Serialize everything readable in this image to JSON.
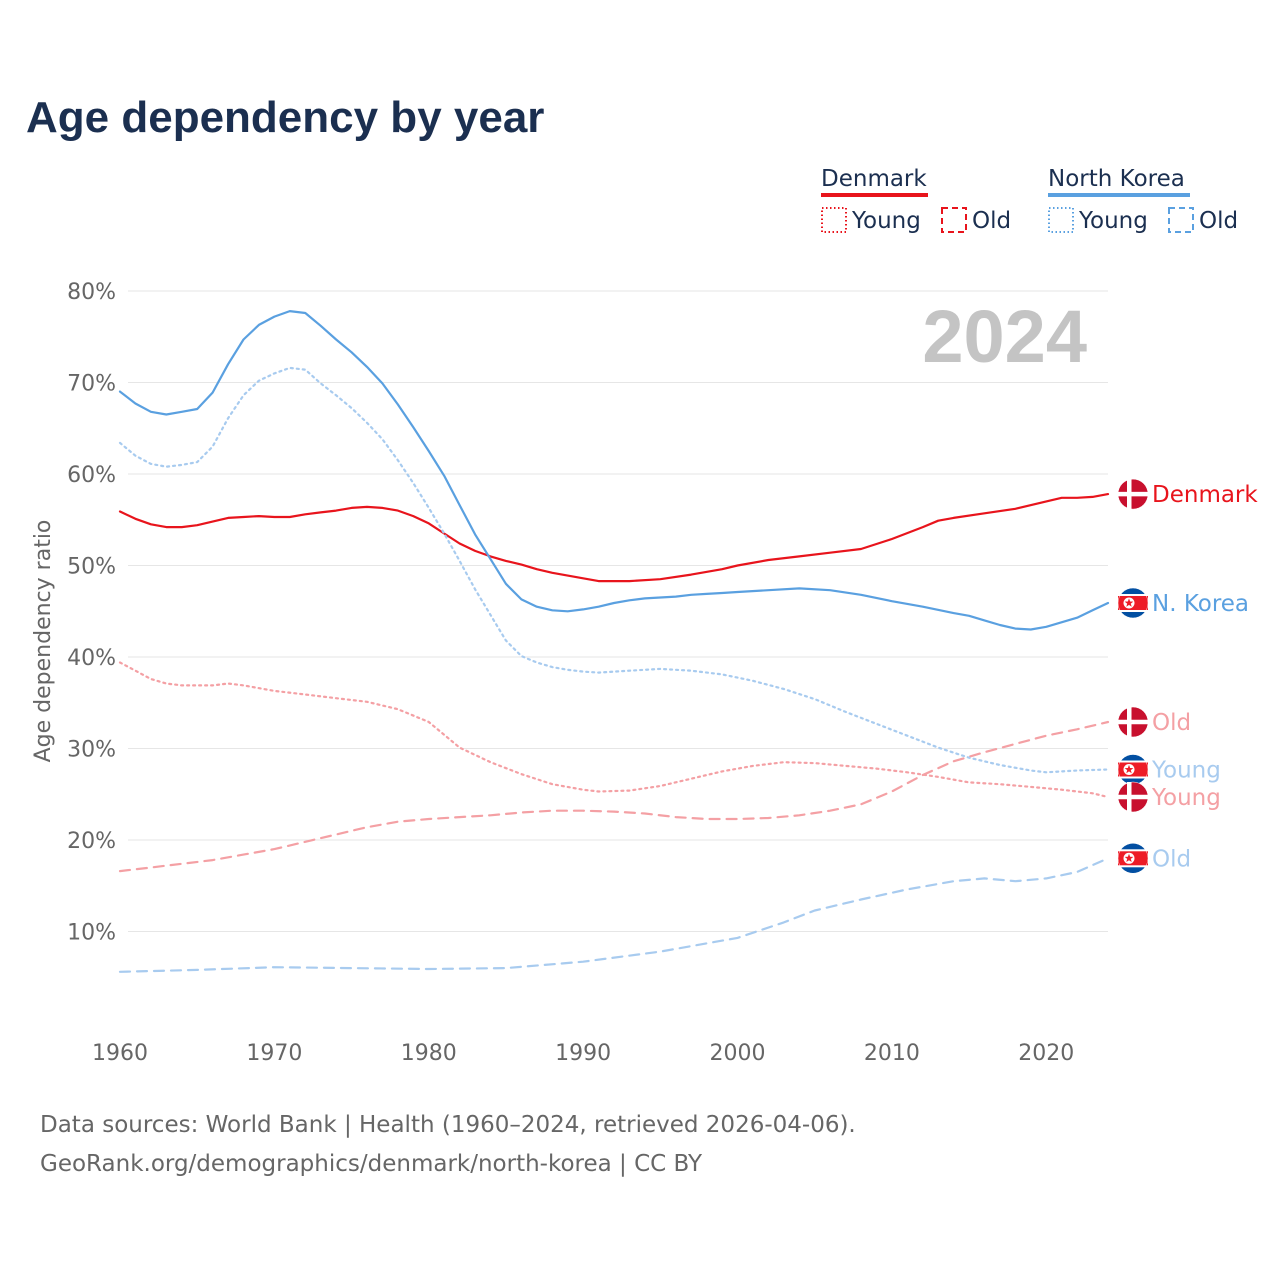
{
  "title": "Age dependency by year",
  "year_watermark": "2024",
  "colors": {
    "denmark": "#e8141c",
    "denmark_light": "#f4a0a4",
    "north_korea": "#5aa0e0",
    "north_korea_light": "#a8cbef",
    "grid": "#e6e6e6",
    "title": "#1b2f50"
  },
  "legend": {
    "groups": [
      {
        "name": "Denmark",
        "color_key": "denmark",
        "items": [
          "Young",
          "Old"
        ]
      },
      {
        "name": "North Korea",
        "color_key": "north_korea",
        "items": [
          "Young",
          "Old"
        ]
      }
    ]
  },
  "end_labels": [
    {
      "text": "Denmark",
      "flag": "denmark-flag",
      "series": "Denmark"
    },
    {
      "text": "N. Korea",
      "flag": "north-korea-flag",
      "series": "North Korea"
    },
    {
      "text": "Old",
      "flag": "denmark-flag",
      "series": "Denmark Old"
    },
    {
      "text": "Young",
      "flag": "north-korea-flag",
      "series": "North Korea Young"
    },
    {
      "text": "Young",
      "flag": "denmark-flag",
      "series": "Denmark Young"
    },
    {
      "text": "Old",
      "flag": "north-korea-flag",
      "series": "North Korea Old"
    }
  ],
  "source": {
    "line1": "Data sources: World Bank | Health (1960–2024, retrieved 2026-04-06).",
    "line2": "GeoRank.org/demographics/denmark/north-korea | CC BY"
  },
  "chart_data": {
    "type": "line",
    "title": "Age dependency by year",
    "xlabel": "",
    "ylabel": "Age dependency ratio",
    "xlim": [
      1960,
      2024
    ],
    "ylim": [
      0,
      80
    ],
    "x_ticks": [
      1960,
      1970,
      1980,
      1990,
      2000,
      2010,
      2020
    ],
    "y_ticks": [
      10,
      20,
      30,
      40,
      50,
      60,
      70,
      80
    ],
    "y_tick_labels": [
      "10%",
      "20%",
      "30%",
      "40%",
      "50%",
      "60%",
      "70%",
      "80%"
    ],
    "grid": true,
    "legend_position": "top-right",
    "series": [
      {
        "name": "Denmark",
        "color_key": "denmark",
        "dash": "solid",
        "points": [
          [
            1960,
            55.9
          ],
          [
            1961,
            55.1
          ],
          [
            1962,
            54.5
          ],
          [
            1963,
            54.2
          ],
          [
            1964,
            54.2
          ],
          [
            1965,
            54.4
          ],
          [
            1966,
            54.8
          ],
          [
            1967,
            55.2
          ],
          [
            1968,
            55.3
          ],
          [
            1969,
            55.4
          ],
          [
            1970,
            55.3
          ],
          [
            1971,
            55.3
          ],
          [
            1972,
            55.6
          ],
          [
            1973,
            55.8
          ],
          [
            1974,
            56.0
          ],
          [
            1975,
            56.3
          ],
          [
            1976,
            56.4
          ],
          [
            1977,
            56.3
          ],
          [
            1978,
            56.0
          ],
          [
            1979,
            55.4
          ],
          [
            1980,
            54.6
          ],
          [
            1981,
            53.5
          ],
          [
            1982,
            52.4
          ],
          [
            1983,
            51.6
          ],
          [
            1984,
            51.0
          ],
          [
            1985,
            50.5
          ],
          [
            1986,
            50.1
          ],
          [
            1987,
            49.6
          ],
          [
            1988,
            49.2
          ],
          [
            1989,
            48.9
          ],
          [
            1990,
            48.6
          ],
          [
            1991,
            48.3
          ],
          [
            1993,
            48.3
          ],
          [
            1995,
            48.5
          ],
          [
            1997,
            49.0
          ],
          [
            1999,
            49.6
          ],
          [
            2000,
            50.0
          ],
          [
            2002,
            50.6
          ],
          [
            2004,
            51.0
          ],
          [
            2006,
            51.4
          ],
          [
            2008,
            51.8
          ],
          [
            2010,
            52.9
          ],
          [
            2012,
            54.2
          ],
          [
            2013,
            54.9
          ],
          [
            2014,
            55.2
          ],
          [
            2016,
            55.7
          ],
          [
            2018,
            56.2
          ],
          [
            2020,
            57.0
          ],
          [
            2021,
            57.4
          ],
          [
            2022,
            57.4
          ],
          [
            2023,
            57.5
          ],
          [
            2024,
            57.8
          ]
        ]
      },
      {
        "name": "Denmark Young",
        "color_key": "denmark_light",
        "dash": "dotted",
        "points": [
          [
            1960,
            39.4
          ],
          [
            1961,
            38.5
          ],
          [
            1962,
            37.6
          ],
          [
            1963,
            37.1
          ],
          [
            1964,
            36.9
          ],
          [
            1966,
            36.9
          ],
          [
            1967,
            37.1
          ],
          [
            1968,
            36.9
          ],
          [
            1970,
            36.3
          ],
          [
            1972,
            35.9
          ],
          [
            1974,
            35.5
          ],
          [
            1976,
            35.1
          ],
          [
            1978,
            34.3
          ],
          [
            1980,
            32.9
          ],
          [
            1982,
            30.1
          ],
          [
            1984,
            28.5
          ],
          [
            1986,
            27.2
          ],
          [
            1988,
            26.1
          ],
          [
            1990,
            25.5
          ],
          [
            1991,
            25.3
          ],
          [
            1993,
            25.4
          ],
          [
            1995,
            25.9
          ],
          [
            1997,
            26.7
          ],
          [
            1999,
            27.5
          ],
          [
            2001,
            28.1
          ],
          [
            2003,
            28.5
          ],
          [
            2005,
            28.4
          ],
          [
            2007,
            28.1
          ],
          [
            2009,
            27.8
          ],
          [
            2011,
            27.4
          ],
          [
            2013,
            26.9
          ],
          [
            2015,
            26.3
          ],
          [
            2017,
            26.1
          ],
          [
            2019,
            25.8
          ],
          [
            2021,
            25.5
          ],
          [
            2023,
            25.1
          ],
          [
            2024,
            24.7
          ]
        ]
      },
      {
        "name": "Denmark Old",
        "color_key": "denmark_light",
        "dash": "dashed",
        "points": [
          [
            1960,
            16.6
          ],
          [
            1962,
            17.0
          ],
          [
            1964,
            17.4
          ],
          [
            1966,
            17.8
          ],
          [
            1968,
            18.4
          ],
          [
            1970,
            19.0
          ],
          [
            1972,
            19.8
          ],
          [
            1974,
            20.6
          ],
          [
            1976,
            21.4
          ],
          [
            1978,
            22.0
          ],
          [
            1980,
            22.3
          ],
          [
            1982,
            22.5
          ],
          [
            1984,
            22.7
          ],
          [
            1986,
            23.0
          ],
          [
            1988,
            23.2
          ],
          [
            1990,
            23.2
          ],
          [
            1992,
            23.1
          ],
          [
            1994,
            22.9
          ],
          [
            1996,
            22.5
          ],
          [
            1998,
            22.3
          ],
          [
            2000,
            22.3
          ],
          [
            2002,
            22.4
          ],
          [
            2004,
            22.7
          ],
          [
            2006,
            23.2
          ],
          [
            2008,
            23.9
          ],
          [
            2010,
            25.3
          ],
          [
            2012,
            27.1
          ],
          [
            2014,
            28.6
          ],
          [
            2016,
            29.6
          ],
          [
            2018,
            30.5
          ],
          [
            2020,
            31.4
          ],
          [
            2022,
            32.1
          ],
          [
            2024,
            32.9
          ]
        ]
      },
      {
        "name": "North Korea",
        "color_key": "north_korea",
        "dash": "solid",
        "points": [
          [
            1960,
            69.0
          ],
          [
            1961,
            67.7
          ],
          [
            1962,
            66.8
          ],
          [
            1963,
            66.5
          ],
          [
            1964,
            66.8
          ],
          [
            1965,
            67.1
          ],
          [
            1966,
            68.9
          ],
          [
            1967,
            72.0
          ],
          [
            1968,
            74.7
          ],
          [
            1969,
            76.3
          ],
          [
            1970,
            77.2
          ],
          [
            1971,
            77.8
          ],
          [
            1972,
            77.6
          ],
          [
            1973,
            76.2
          ],
          [
            1974,
            74.7
          ],
          [
            1975,
            73.3
          ],
          [
            1976,
            71.7
          ],
          [
            1977,
            69.9
          ],
          [
            1978,
            67.6
          ],
          [
            1979,
            65.1
          ],
          [
            1980,
            62.5
          ],
          [
            1981,
            59.8
          ],
          [
            1982,
            56.6
          ],
          [
            1983,
            53.4
          ],
          [
            1984,
            50.7
          ],
          [
            1985,
            48.0
          ],
          [
            1986,
            46.3
          ],
          [
            1987,
            45.5
          ],
          [
            1988,
            45.1
          ],
          [
            1989,
            45.0
          ],
          [
            1990,
            45.2
          ],
          [
            1991,
            45.5
          ],
          [
            1992,
            45.9
          ],
          [
            1993,
            46.2
          ],
          [
            1994,
            46.4
          ],
          [
            1995,
            46.5
          ],
          [
            1996,
            46.6
          ],
          [
            1997,
            46.8
          ],
          [
            1998,
            46.9
          ],
          [
            1999,
            47.0
          ],
          [
            2000,
            47.1
          ],
          [
            2002,
            47.3
          ],
          [
            2004,
            47.5
          ],
          [
            2006,
            47.3
          ],
          [
            2008,
            46.8
          ],
          [
            2010,
            46.1
          ],
          [
            2012,
            45.5
          ],
          [
            2014,
            44.8
          ],
          [
            2015,
            44.5
          ],
          [
            2016,
            44.0
          ],
          [
            2017,
            43.5
          ],
          [
            2018,
            43.1
          ],
          [
            2019,
            43.0
          ],
          [
            2020,
            43.3
          ],
          [
            2022,
            44.3
          ],
          [
            2023,
            45.1
          ],
          [
            2024,
            45.9
          ]
        ]
      },
      {
        "name": "North Korea Young",
        "color_key": "north_korea_light",
        "dash": "dotted",
        "points": [
          [
            1960,
            63.4
          ],
          [
            1961,
            62.0
          ],
          [
            1962,
            61.1
          ],
          [
            1963,
            60.8
          ],
          [
            1964,
            61.0
          ],
          [
            1965,
            61.3
          ],
          [
            1966,
            63.0
          ],
          [
            1967,
            66.1
          ],
          [
            1968,
            68.6
          ],
          [
            1969,
            70.2
          ],
          [
            1970,
            71.0
          ],
          [
            1971,
            71.6
          ],
          [
            1972,
            71.4
          ],
          [
            1973,
            69.9
          ],
          [
            1974,
            68.6
          ],
          [
            1975,
            67.2
          ],
          [
            1976,
            65.6
          ],
          [
            1977,
            63.8
          ],
          [
            1978,
            61.5
          ],
          [
            1979,
            59.0
          ],
          [
            1980,
            56.3
          ],
          [
            1981,
            53.5
          ],
          [
            1982,
            50.5
          ],
          [
            1983,
            47.4
          ],
          [
            1984,
            44.6
          ],
          [
            1985,
            41.8
          ],
          [
            1986,
            40.1
          ],
          [
            1987,
            39.4
          ],
          [
            1988,
            38.9
          ],
          [
            1989,
            38.6
          ],
          [
            1990,
            38.4
          ],
          [
            1991,
            38.3
          ],
          [
            1993,
            38.5
          ],
          [
            1995,
            38.7
          ],
          [
            1997,
            38.5
          ],
          [
            1999,
            38.1
          ],
          [
            2001,
            37.4
          ],
          [
            2003,
            36.5
          ],
          [
            2005,
            35.4
          ],
          [
            2007,
            34.0
          ],
          [
            2009,
            32.7
          ],
          [
            2011,
            31.4
          ],
          [
            2013,
            30.1
          ],
          [
            2015,
            29.0
          ],
          [
            2017,
            28.2
          ],
          [
            2019,
            27.6
          ],
          [
            2020,
            27.4
          ],
          [
            2022,
            27.6
          ],
          [
            2024,
            27.7
          ]
        ]
      },
      {
        "name": "North Korea Old",
        "color_key": "north_korea_light",
        "dash": "dashed",
        "points": [
          [
            1960,
            5.6
          ],
          [
            1965,
            5.8
          ],
          [
            1970,
            6.1
          ],
          [
            1975,
            6.0
          ],
          [
            1980,
            5.9
          ],
          [
            1985,
            6.0
          ],
          [
            1990,
            6.7
          ],
          [
            1995,
            7.8
          ],
          [
            2000,
            9.3
          ],
          [
            2003,
            11.0
          ],
          [
            2005,
            12.3
          ],
          [
            2008,
            13.5
          ],
          [
            2011,
            14.6
          ],
          [
            2014,
            15.5
          ],
          [
            2016,
            15.8
          ],
          [
            2018,
            15.5
          ],
          [
            2020,
            15.8
          ],
          [
            2022,
            16.5
          ],
          [
            2024,
            18.0
          ]
        ]
      }
    ]
  }
}
